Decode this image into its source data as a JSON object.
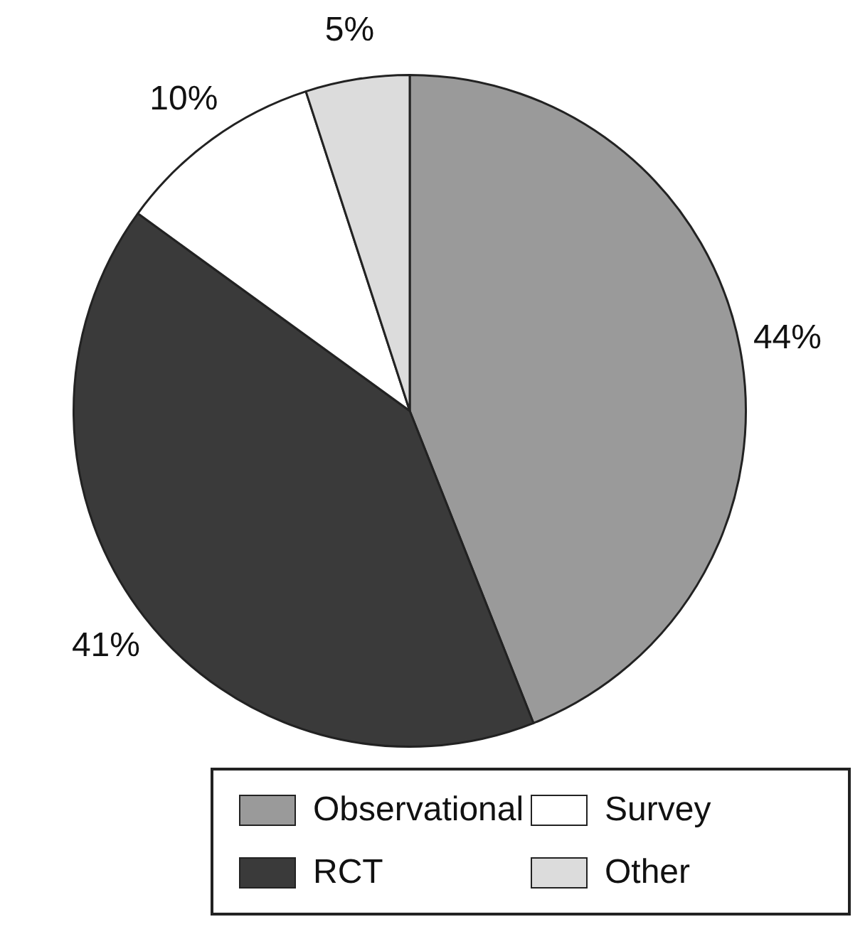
{
  "chart_data": {
    "type": "pie",
    "categories": [
      "Observational",
      "RCT",
      "Survey",
      "Other"
    ],
    "values": [
      44,
      41,
      10,
      5
    ],
    "colors": [
      "#9a9a9a",
      "#3a3a3a",
      "#ffffff",
      "#dcdcdc"
    ],
    "value_labels": [
      "44%",
      "41%",
      "10%",
      "5%"
    ],
    "legend": "bottom"
  }
}
